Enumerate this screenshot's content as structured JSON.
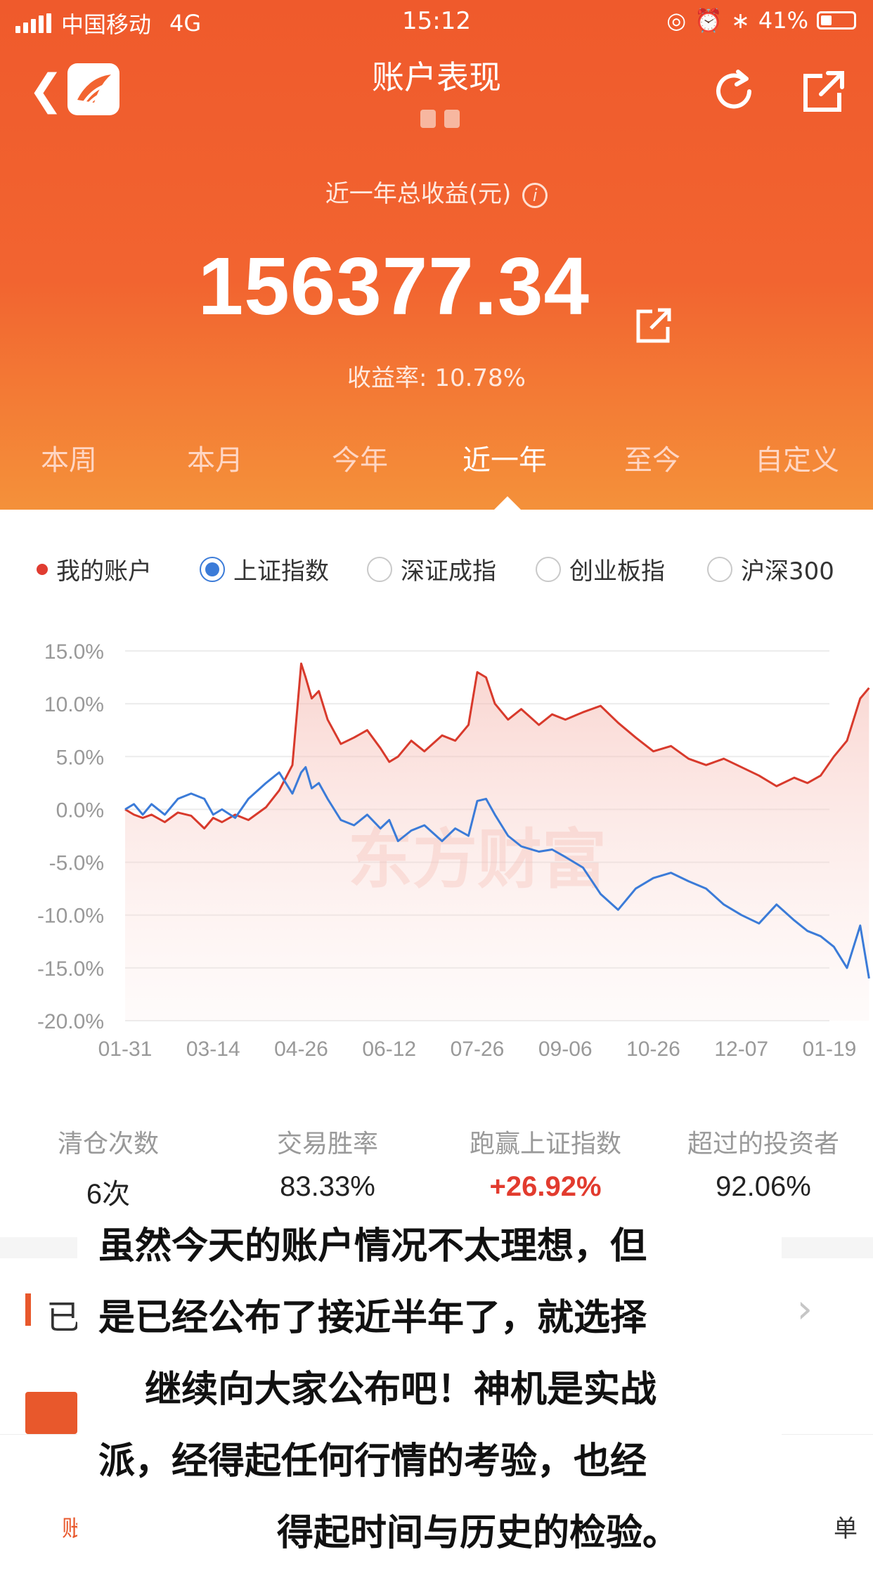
{
  "status_bar": {
    "carrier": "中国移动",
    "network": "4G",
    "time": "15:12",
    "battery": "41%"
  },
  "nav": {
    "title": "账户表现",
    "back_icon": "chevron-left-icon",
    "refresh_icon": "refresh-icon",
    "share_icon": "share-icon"
  },
  "summary": {
    "label": "近一年总收益(元)",
    "total": "156377.34",
    "rate_label": "收益率:",
    "rate_value": "10.78%"
  },
  "tabs": [
    {
      "label": "本周"
    },
    {
      "label": "本月"
    },
    {
      "label": "今年"
    },
    {
      "label": "近一年",
      "active": true
    },
    {
      "label": "至今"
    },
    {
      "label": "自定义"
    }
  ],
  "legend": [
    {
      "label": "我的账户",
      "kind": "dot",
      "color": "#e03c31"
    },
    {
      "label": "上证指数",
      "kind": "radio",
      "selected": true,
      "color": "#3b7bd8"
    },
    {
      "label": "深证成指",
      "kind": "radio",
      "selected": false
    },
    {
      "label": "创业板指",
      "kind": "radio",
      "selected": false
    },
    {
      "label": "沪深300",
      "kind": "radio",
      "selected": false
    }
  ],
  "chart_data": {
    "type": "line",
    "title": "",
    "watermark": "东方财富",
    "ylim": [
      -20,
      15
    ],
    "y_ticks": [
      "15.0%",
      "10.0%",
      "5.0%",
      "0.0%",
      "-5.0%",
      "-10.0%",
      "-15.0%",
      "-20.0%"
    ],
    "y_tick_values": [
      15,
      10,
      5,
      0,
      -5,
      -10,
      -15,
      -20
    ],
    "x_ticks": [
      "01-31",
      "03-14",
      "04-26",
      "06-12",
      "07-26",
      "09-06",
      "10-26",
      "12-07",
      "01-19"
    ],
    "grid": true,
    "series": [
      {
        "name": "我的账户",
        "color": "#d83a2c",
        "fill": true,
        "x": [
          0,
          0.1,
          0.2,
          0.3,
          0.45,
          0.6,
          0.75,
          0.9,
          1.0,
          1.1,
          1.25,
          1.4,
          1.6,
          1.75,
          1.9,
          2.0,
          2.05,
          2.12,
          2.2,
          2.3,
          2.45,
          2.6,
          2.75,
          2.9,
          3.0,
          3.1,
          3.25,
          3.4,
          3.6,
          3.75,
          3.9,
          4.0,
          4.1,
          4.2,
          4.35,
          4.5,
          4.7,
          4.85,
          5.0,
          5.2,
          5.4,
          5.6,
          5.8,
          6.0,
          6.2,
          6.4,
          6.6,
          6.8,
          7.0,
          7.2,
          7.4,
          7.6,
          7.75,
          7.9,
          8.05,
          8.2,
          8.35,
          8.45
        ],
        "y": [
          0,
          -0.5,
          -0.8,
          -0.5,
          -1.2,
          -0.3,
          -0.6,
          -1.8,
          -0.8,
          -1.2,
          -0.5,
          -1.0,
          0.2,
          1.8,
          4.2,
          13.8,
          12.5,
          10.5,
          11.2,
          8.5,
          6.2,
          6.8,
          7.5,
          5.8,
          4.5,
          5.0,
          6.5,
          5.5,
          7.0,
          6.5,
          8.0,
          13.0,
          12.5,
          10.0,
          8.5,
          9.5,
          8.0,
          9.0,
          8.5,
          9.2,
          9.8,
          8.2,
          6.8,
          5.5,
          6.0,
          4.8,
          4.2,
          4.8,
          4.0,
          3.2,
          2.2,
          3.0,
          2.5,
          3.2,
          5.0,
          6.5,
          10.5,
          11.5
        ]
      },
      {
        "name": "上证指数",
        "color": "#3b7bd8",
        "fill": false,
        "x": [
          0,
          0.1,
          0.2,
          0.3,
          0.45,
          0.6,
          0.75,
          0.9,
          1.0,
          1.1,
          1.25,
          1.4,
          1.6,
          1.75,
          1.9,
          2.0,
          2.05,
          2.12,
          2.2,
          2.3,
          2.45,
          2.6,
          2.75,
          2.9,
          3.0,
          3.1,
          3.25,
          3.4,
          3.6,
          3.75,
          3.9,
          4.0,
          4.1,
          4.2,
          4.35,
          4.5,
          4.7,
          4.85,
          5.0,
          5.2,
          5.4,
          5.6,
          5.8,
          6.0,
          6.2,
          6.4,
          6.6,
          6.8,
          7.0,
          7.2,
          7.4,
          7.6,
          7.75,
          7.9,
          8.05,
          8.2,
          8.35,
          8.45
        ],
        "y": [
          0,
          0.5,
          -0.5,
          0.5,
          -0.5,
          1.0,
          1.5,
          1.0,
          -0.5,
          0.0,
          -0.8,
          1.0,
          2.5,
          3.5,
          1.5,
          3.5,
          4.0,
          2.0,
          2.5,
          1.0,
          -1.0,
          -1.5,
          -0.5,
          -1.8,
          -1.0,
          -3.0,
          -2.0,
          -1.5,
          -3.0,
          -1.8,
          -2.5,
          0.8,
          1.0,
          -0.5,
          -2.5,
          -3.5,
          -4.0,
          -3.8,
          -4.5,
          -5.5,
          -8.0,
          -9.5,
          -7.5,
          -6.5,
          -6.0,
          -6.8,
          -7.5,
          -9.0,
          -10.0,
          -10.8,
          -9.0,
          -10.5,
          -11.5,
          -12.0,
          -13.0,
          -15.0,
          -11.0,
          -16.0
        ]
      }
    ]
  },
  "stats": [
    {
      "label": "清仓次数",
      "value": "6次"
    },
    {
      "label": "交易胜率",
      "value": "83.33%"
    },
    {
      "label": "跑赢上证指数",
      "value": "+26.92%",
      "highlight": true
    },
    {
      "label": "超过的投资者",
      "value": "92.06%"
    }
  ],
  "section": {
    "partial_label": "已",
    "chevron_icon": "chevron-right-icon"
  },
  "bottom_tabs": {
    "left": "账户表现",
    "right_partial": "单"
  },
  "overlay_text": [
    "虽然今天的账户情况不太理想，但",
    "是已经公布了接近半年了，就选择",
    "继续向大家公布吧！神机是实战",
    "派，经得起任何行情的考验，也经",
    "得起时间与历史的检验。"
  ]
}
